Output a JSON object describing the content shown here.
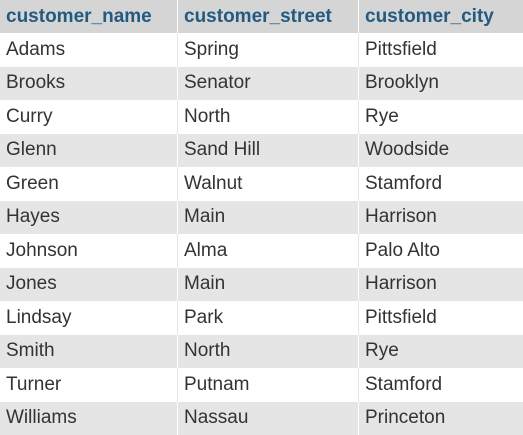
{
  "table": {
    "columns": [
      "customer_name",
      "customer_street",
      "customer_city"
    ],
    "rows": [
      [
        "Adams",
        "Spring",
        "Pittsfield"
      ],
      [
        "Brooks",
        "Senator",
        "Brooklyn"
      ],
      [
        "Curry",
        "North",
        "Rye"
      ],
      [
        "Glenn",
        "Sand Hill",
        "Woodside"
      ],
      [
        "Green",
        "Walnut",
        "Stamford"
      ],
      [
        "Hayes",
        "Main",
        "Harrison"
      ],
      [
        "Johnson",
        "Alma",
        "Palo Alto"
      ],
      [
        "Jones",
        "Main",
        "Harrison"
      ],
      [
        "Lindsay",
        "Park",
        "Pittsfield"
      ],
      [
        "Smith",
        "North",
        "Rye"
      ],
      [
        "Turner",
        "Putnam",
        "Stamford"
      ],
      [
        "Williams",
        "Nassau",
        "Princeton"
      ]
    ]
  },
  "colors": {
    "header_bg": "#d5d5d5",
    "header_text": "#235a81",
    "row_even_bg": "#ffffff",
    "row_odd_bg": "#e5e5e5",
    "cell_text": "#333333"
  }
}
